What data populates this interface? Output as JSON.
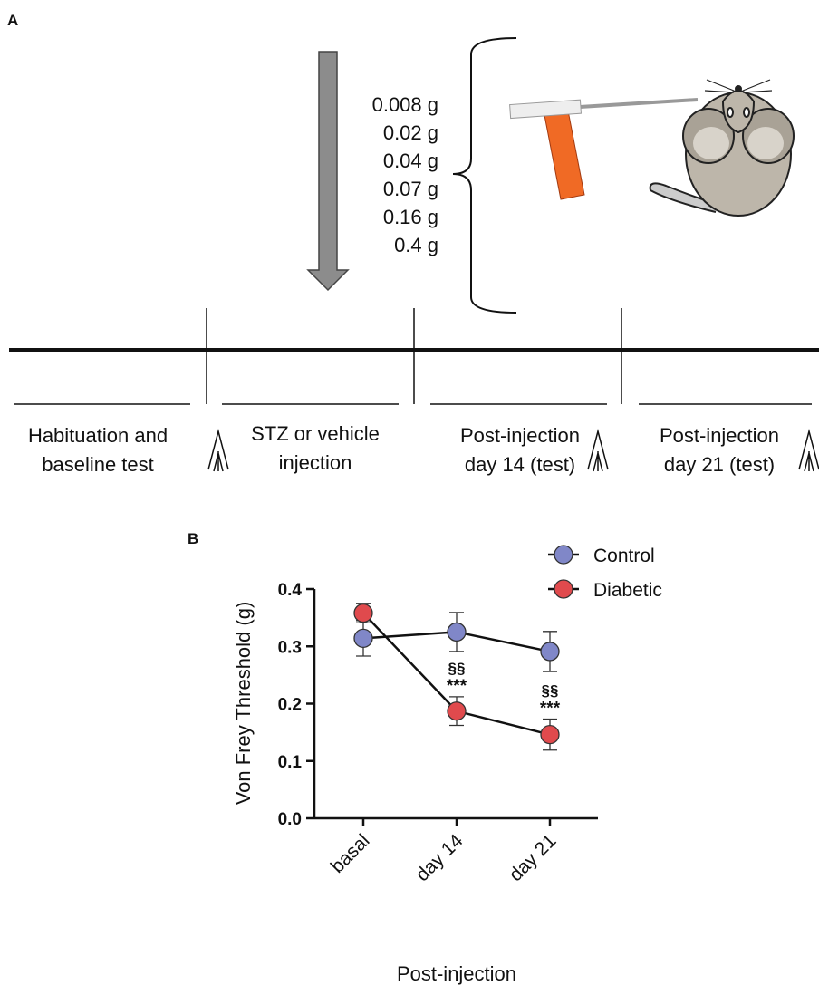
{
  "panel_a": {
    "label": "A",
    "weights": [
      "0.008 g",
      "0.02 g",
      "0.04 g",
      "0.07 g",
      "0.16 g",
      "0.4 g"
    ],
    "stages": [
      {
        "lines": [
          "Habituation and",
          "baseline test"
        ]
      },
      {
        "lines": [
          "STZ or vehicle",
          "injection"
        ]
      },
      {
        "lines": [
          "Post-injection",
          "day 14 (test)"
        ]
      },
      {
        "lines": [
          "Post-injection",
          "day 21 (test)"
        ]
      }
    ]
  },
  "chart_data": {
    "type": "line",
    "label": "B",
    "ylabel": "Von Frey Threshold (g)",
    "xlabel": "Post-injection",
    "categories": [
      "basal",
      "day 14",
      "day 21"
    ],
    "ylim": [
      0,
      0.4
    ],
    "yticks": [
      {
        "value": 0,
        "label": "0.0"
      },
      0.1,
      0.2,
      0.3,
      0.4
    ],
    "legend": "top-right",
    "series": [
      {
        "name": "Control",
        "color": "#8087c8",
        "values": [
          0.314,
          0.325,
          0.291
        ],
        "errors": [
          0.031,
          0.034,
          0.035
        ]
      },
      {
        "name": "Diabetic",
        "color": "#e04a4d",
        "values": [
          0.358,
          0.187,
          0.146
        ],
        "errors": [
          0.017,
          0.025,
          0.027
        ],
        "significance_top": [
          null,
          "§§",
          "§§"
        ],
        "significance_bottom": [
          null,
          "***",
          "***"
        ]
      }
    ]
  }
}
